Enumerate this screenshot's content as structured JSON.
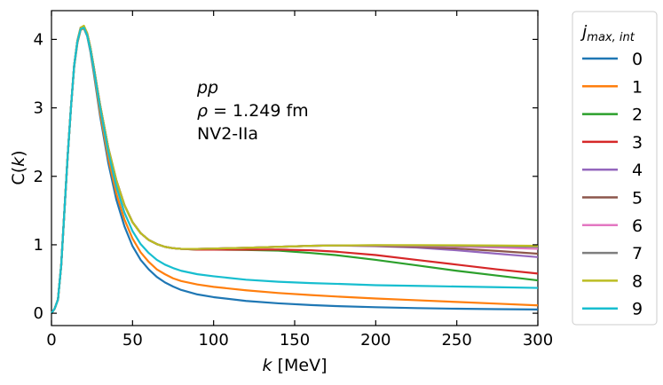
{
  "chart_data": {
    "type": "line",
    "xlabel_italic": "k",
    "xlabel_unit": " [MeV]",
    "ylabel_prefix": "C(",
    "ylabel_var": "k",
    "ylabel_suffix": ")",
    "xlim": [
      0,
      300
    ],
    "ylim": [
      -0.18,
      4.42
    ],
    "xticks": [
      0,
      50,
      100,
      150,
      200,
      250,
      300
    ],
    "yticks": [
      0,
      1,
      2,
      3,
      4
    ],
    "annotation": {
      "line1": "pp",
      "line2_symbol": "ρ",
      "line2_rest": " = 1.249 fm",
      "line3": "NV2-IIa"
    },
    "legend": {
      "title_main": "j",
      "title_sub": "max, int",
      "placement": "right-outside"
    },
    "x": [
      0,
      2,
      4,
      6,
      8,
      10,
      12,
      14,
      16,
      18,
      20,
      22,
      24,
      26,
      28,
      30,
      35,
      40,
      45,
      50,
      55,
      60,
      65,
      70,
      75,
      80,
      90,
      100,
      120,
      140,
      160,
      175,
      200,
      225,
      250,
      275,
      300
    ],
    "series": [
      {
        "name": "0",
        "color": "#1f77b4",
        "values": [
          0.0,
          0.07,
          0.2,
          0.7,
          1.5,
          2.3,
          3.0,
          3.6,
          3.95,
          4.14,
          4.16,
          4.05,
          3.82,
          3.52,
          3.2,
          2.88,
          2.2,
          1.66,
          1.27,
          0.98,
          0.78,
          0.64,
          0.53,
          0.45,
          0.39,
          0.34,
          0.275,
          0.235,
          0.18,
          0.145,
          0.12,
          0.105,
          0.088,
          0.075,
          0.066,
          0.06,
          0.055
        ]
      },
      {
        "name": "1",
        "color": "#ff7f0e",
        "values": [
          0.0,
          0.07,
          0.2,
          0.7,
          1.5,
          2.3,
          3.0,
          3.6,
          3.95,
          4.14,
          4.16,
          4.06,
          3.84,
          3.55,
          3.24,
          2.93,
          2.27,
          1.75,
          1.37,
          1.09,
          0.89,
          0.75,
          0.64,
          0.57,
          0.51,
          0.47,
          0.42,
          0.385,
          0.335,
          0.295,
          0.265,
          0.245,
          0.215,
          0.19,
          0.165,
          0.14,
          0.115
        ]
      },
      {
        "name": "2",
        "color": "#2ca02c",
        "values": [
          0.0,
          0.07,
          0.2,
          0.7,
          1.5,
          2.3,
          3.0,
          3.62,
          3.98,
          4.17,
          4.19,
          4.09,
          3.88,
          3.61,
          3.32,
          3.04,
          2.42,
          1.94,
          1.58,
          1.33,
          1.17,
          1.07,
          1.01,
          0.97,
          0.95,
          0.94,
          0.93,
          0.93,
          0.925,
          0.915,
          0.88,
          0.85,
          0.78,
          0.7,
          0.62,
          0.55,
          0.48
        ]
      },
      {
        "name": "3",
        "color": "#d62728",
        "values": [
          0.0,
          0.07,
          0.2,
          0.7,
          1.5,
          2.3,
          3.0,
          3.62,
          3.98,
          4.17,
          4.19,
          4.09,
          3.88,
          3.61,
          3.32,
          3.04,
          2.42,
          1.94,
          1.58,
          1.33,
          1.17,
          1.07,
          1.01,
          0.97,
          0.95,
          0.94,
          0.93,
          0.93,
          0.93,
          0.93,
          0.92,
          0.9,
          0.85,
          0.78,
          0.71,
          0.64,
          0.58
        ]
      },
      {
        "name": "4",
        "color": "#9467bd",
        "values": [
          0.0,
          0.07,
          0.2,
          0.7,
          1.5,
          2.3,
          3.0,
          3.62,
          3.98,
          4.17,
          4.19,
          4.09,
          3.88,
          3.61,
          3.32,
          3.04,
          2.42,
          1.94,
          1.58,
          1.33,
          1.17,
          1.07,
          1.01,
          0.97,
          0.95,
          0.94,
          0.94,
          0.945,
          0.955,
          0.97,
          0.985,
          0.99,
          0.98,
          0.96,
          0.92,
          0.87,
          0.82
        ]
      },
      {
        "name": "5",
        "color": "#8c564b",
        "values": [
          0.0,
          0.07,
          0.2,
          0.7,
          1.5,
          2.3,
          3.0,
          3.62,
          3.98,
          4.17,
          4.19,
          4.09,
          3.88,
          3.61,
          3.32,
          3.04,
          2.42,
          1.94,
          1.58,
          1.33,
          1.17,
          1.07,
          1.01,
          0.97,
          0.95,
          0.94,
          0.94,
          0.945,
          0.955,
          0.97,
          0.985,
          0.99,
          0.985,
          0.97,
          0.945,
          0.91,
          0.87
        ]
      },
      {
        "name": "6",
        "color": "#e377c2",
        "values": [
          0.0,
          0.07,
          0.2,
          0.7,
          1.5,
          2.3,
          3.0,
          3.62,
          3.98,
          4.17,
          4.19,
          4.09,
          3.88,
          3.61,
          3.32,
          3.04,
          2.42,
          1.94,
          1.58,
          1.33,
          1.17,
          1.07,
          1.01,
          0.97,
          0.95,
          0.94,
          0.94,
          0.945,
          0.955,
          0.97,
          0.985,
          0.99,
          0.99,
          0.985,
          0.975,
          0.96,
          0.94
        ]
      },
      {
        "name": "7",
        "color": "#7f7f7f",
        "values": [
          0.0,
          0.07,
          0.2,
          0.7,
          1.5,
          2.3,
          3.0,
          3.62,
          3.98,
          4.17,
          4.19,
          4.09,
          3.88,
          3.61,
          3.32,
          3.04,
          2.42,
          1.94,
          1.58,
          1.33,
          1.17,
          1.07,
          1.01,
          0.97,
          0.95,
          0.94,
          0.94,
          0.945,
          0.955,
          0.97,
          0.985,
          0.99,
          0.993,
          0.99,
          0.985,
          0.98,
          0.97
        ]
      },
      {
        "name": "8",
        "color": "#bcbd22",
        "values": [
          0.0,
          0.07,
          0.2,
          0.7,
          1.5,
          2.3,
          3.0,
          3.62,
          3.98,
          4.17,
          4.2,
          4.09,
          3.88,
          3.61,
          3.32,
          3.04,
          2.42,
          1.94,
          1.58,
          1.33,
          1.17,
          1.07,
          1.01,
          0.97,
          0.95,
          0.94,
          0.94,
          0.945,
          0.955,
          0.97,
          0.985,
          0.99,
          0.995,
          0.995,
          0.993,
          0.99,
          0.985
        ]
      },
      {
        "name": "9",
        "color": "#17becf",
        "values": [
          0.0,
          0.07,
          0.2,
          0.7,
          1.5,
          2.3,
          3.0,
          3.62,
          3.97,
          4.15,
          4.17,
          4.06,
          3.85,
          3.58,
          3.29,
          3.0,
          2.36,
          1.85,
          1.47,
          1.2,
          1.01,
          0.88,
          0.78,
          0.71,
          0.66,
          0.62,
          0.57,
          0.54,
          0.49,
          0.46,
          0.44,
          0.43,
          0.41,
          0.4,
          0.39,
          0.38,
          0.37
        ]
      }
    ]
  }
}
